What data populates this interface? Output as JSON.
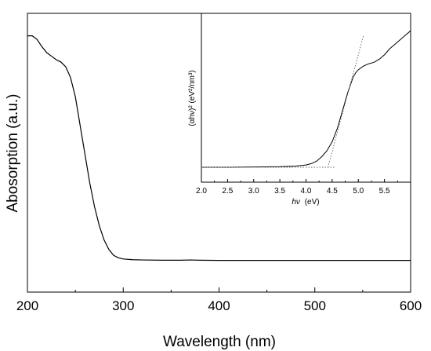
{
  "chart_data": [
    {
      "type": "line",
      "xlabel": "Wavelength (nm)",
      "ylabel": "Abosorption (a.u.)",
      "xlim": [
        200,
        600
      ],
      "ylim": [
        0,
        1
      ],
      "xticks": [
        "200",
        "300",
        "400",
        "500",
        "600"
      ],
      "y_tick_labels": false,
      "series": [
        {
          "x": [
            200,
            205,
            210,
            215,
            220,
            225,
            230,
            235,
            240,
            245,
            250,
            255,
            260,
            265,
            270,
            275,
            280,
            285,
            290,
            295,
            300,
            310,
            320,
            340,
            360,
            370,
            380,
            400,
            450,
            500,
            550,
            600
          ],
          "y": [
            0.975,
            0.975,
            0.96,
            0.93,
            0.905,
            0.89,
            0.875,
            0.865,
            0.845,
            0.8,
            0.72,
            0.6,
            0.48,
            0.36,
            0.26,
            0.18,
            0.12,
            0.08,
            0.055,
            0.045,
            0.04,
            0.037,
            0.036,
            0.035,
            0.035,
            0.036,
            0.035,
            0.034,
            0.034,
            0.034,
            0.034,
            0.034
          ]
        }
      ]
    },
    {
      "type": "line",
      "xlabel_symbol": "hν",
      "xlabel_unit": "(eV)",
      "ylabel": "(αhν)² (eV²/nm³)",
      "xlim": [
        2.0,
        6.0
      ],
      "ylim": [
        0,
        1
      ],
      "xticks": [
        "2.0",
        "2.5",
        "3.0",
        "3.5",
        "4.0",
        "4.5",
        "5.0",
        "5.5"
      ],
      "y_tick_labels": false,
      "series": [
        {
          "x": [
            2.0,
            2.5,
            3.0,
            3.5,
            3.8,
            4.0,
            4.1,
            4.2,
            4.3,
            4.4,
            4.5,
            4.6,
            4.7,
            4.8,
            4.9,
            4.95,
            5.0,
            5.1,
            5.2,
            5.3,
            5.4,
            5.5,
            5.6,
            5.7,
            5.8,
            5.9,
            6.0
          ],
          "y": [
            0.0,
            0.0,
            0.002,
            0.004,
            0.008,
            0.015,
            0.024,
            0.04,
            0.07,
            0.11,
            0.17,
            0.26,
            0.38,
            0.5,
            0.6,
            0.63,
            0.65,
            0.675,
            0.69,
            0.7,
            0.72,
            0.75,
            0.79,
            0.82,
            0.85,
            0.88,
            0.91
          ]
        },
        {
          "x": [
            2.0,
            4.55
          ],
          "y": [
            0.0,
            0.0
          ],
          "style": "dotted"
        },
        {
          "x": [
            4.42,
            5.1
          ],
          "y": [
            0.0,
            0.88
          ],
          "style": "dotted"
        }
      ]
    }
  ]
}
